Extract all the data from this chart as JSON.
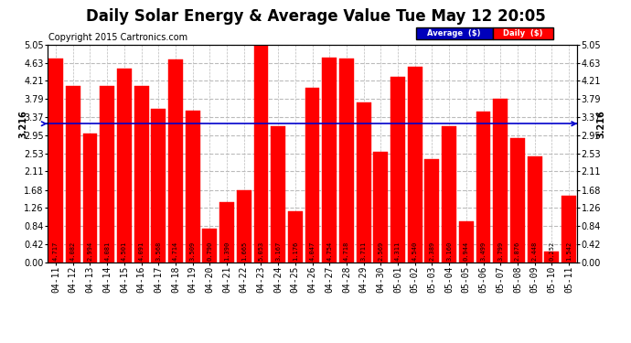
{
  "title": "Daily Solar Energy & Average Value Tue May 12 20:05",
  "copyright": "Copyright 2015 Cartronics.com",
  "average_value": 3.216,
  "average_label": "3.216",
  "categories": [
    "04-11",
    "04-12",
    "04-13",
    "04-14",
    "04-15",
    "04-16",
    "04-17",
    "04-18",
    "04-19",
    "04-20",
    "04-21",
    "04-22",
    "04-23",
    "04-24",
    "04-25",
    "04-26",
    "04-27",
    "04-28",
    "04-29",
    "04-30",
    "05-01",
    "05-02",
    "05-03",
    "05-04",
    "05-05",
    "05-06",
    "05-07",
    "05-08",
    "05-09",
    "05-10",
    "05-11"
  ],
  "values": [
    4.717,
    4.082,
    2.994,
    4.081,
    4.501,
    4.091,
    3.568,
    4.714,
    3.509,
    0.79,
    1.39,
    1.665,
    5.053,
    3.167,
    1.176,
    4.047,
    4.754,
    4.718,
    3.711,
    2.569,
    4.311,
    4.54,
    2.389,
    3.16,
    0.944,
    3.499,
    3.799,
    2.876,
    2.448,
    0.252,
    1.542
  ],
  "bar_color": "#FF0000",
  "bar_edgecolor": "#FF0000",
  "avg_line_color": "#0000CC",
  "background_color": "#FFFFFF",
  "plot_bg_color": "#FFFFFF",
  "ylim": [
    0.0,
    5.05
  ],
  "yticks": [
    0.0,
    0.42,
    0.84,
    1.26,
    1.68,
    2.11,
    2.53,
    2.95,
    3.37,
    3.79,
    4.21,
    4.63,
    5.05
  ],
  "grid_color": "#BBBBBB",
  "grid_style": "--",
  "legend_avg_color": "#0000BB",
  "legend_daily_color": "#FF0000",
  "title_fontsize": 12,
  "copyright_fontsize": 7,
  "tick_fontsize": 7,
  "value_fontsize": 5,
  "avg_fontsize": 7
}
